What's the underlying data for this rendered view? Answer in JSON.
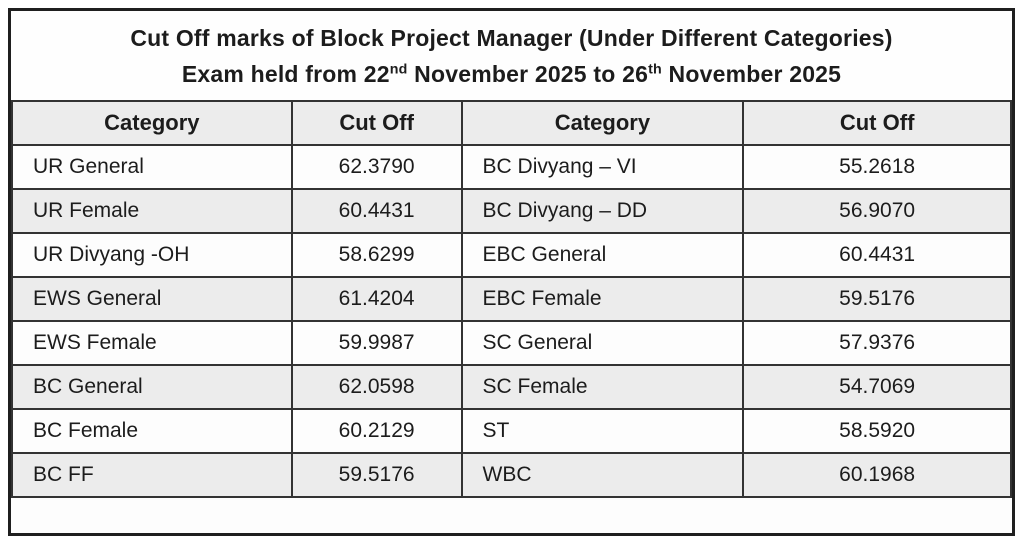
{
  "title": {
    "line1": "Cut Off marks of Block Project Manager (Under Different Categories)",
    "line2": {
      "prefix": "Exam held from 22",
      "sup1": "nd",
      "middle": " November 2025 to 26",
      "sup2": "th",
      "suffix": " November 2025"
    }
  },
  "table": {
    "columns": [
      "Category",
      "Cut Off",
      "Category",
      "Cut Off"
    ],
    "rows": [
      {
        "c1": "UR General",
        "v1": "62.3790",
        "c2": "BC Divyang – VI",
        "v2": "55.2618"
      },
      {
        "c1": "UR Female",
        "v1": "60.4431",
        "c2": "BC Divyang – DD",
        "v2": "56.9070"
      },
      {
        "c1": "UR Divyang -OH",
        "v1": "58.6299",
        "c2": "EBC General",
        "v2": "60.4431"
      },
      {
        "c1": "EWS General",
        "v1": "61.4204",
        "c2": "EBC Female",
        "v2": "59.5176"
      },
      {
        "c1": "EWS Female",
        "v1": "59.9987",
        "c2": "SC General",
        "v2": "57.9376"
      },
      {
        "c1": "BC General",
        "v1": "62.0598",
        "c2": "SC Female",
        "v2": "54.7069"
      },
      {
        "c1": "BC Female",
        "v1": "60.2129",
        "c2": "ST",
        "v2": "58.5920"
      },
      {
        "c1": "BC FF",
        "v1": "59.5176",
        "c2": "WBC",
        "v2": "60.1968"
      }
    ]
  },
  "colors": {
    "border": "#1f1f1f",
    "inner_border": "#333333",
    "stripe_gray": "#ececec",
    "stripe_white": "#fdfdfd",
    "text": "#1c1c1c"
  },
  "chart_data": {
    "type": "table",
    "title": "Cut Off marks of Block Project Manager (Under Different Categories)",
    "subtitle": "Exam held from 22nd November 2025 to 26th November 2025",
    "columns": [
      "Category",
      "Cut Off"
    ],
    "records": [
      {
        "category": "UR General",
        "cutoff": 62.379
      },
      {
        "category": "UR Female",
        "cutoff": 60.4431
      },
      {
        "category": "UR Divyang -OH",
        "cutoff": 58.6299
      },
      {
        "category": "EWS General",
        "cutoff": 61.4204
      },
      {
        "category": "EWS Female",
        "cutoff": 59.9987
      },
      {
        "category": "BC General",
        "cutoff": 62.0598
      },
      {
        "category": "BC Female",
        "cutoff": 60.2129
      },
      {
        "category": "BC FF",
        "cutoff": 59.5176
      },
      {
        "category": "BC Divyang – VI",
        "cutoff": 55.2618
      },
      {
        "category": "BC Divyang – DD",
        "cutoff": 56.907
      },
      {
        "category": "EBC General",
        "cutoff": 60.4431
      },
      {
        "category": "EBC Female",
        "cutoff": 59.5176
      },
      {
        "category": "SC General",
        "cutoff": 57.9376
      },
      {
        "category": "SC Female",
        "cutoff": 54.7069
      },
      {
        "category": "ST",
        "cutoff": 58.592
      },
      {
        "category": "WBC",
        "cutoff": 60.1968
      }
    ]
  }
}
